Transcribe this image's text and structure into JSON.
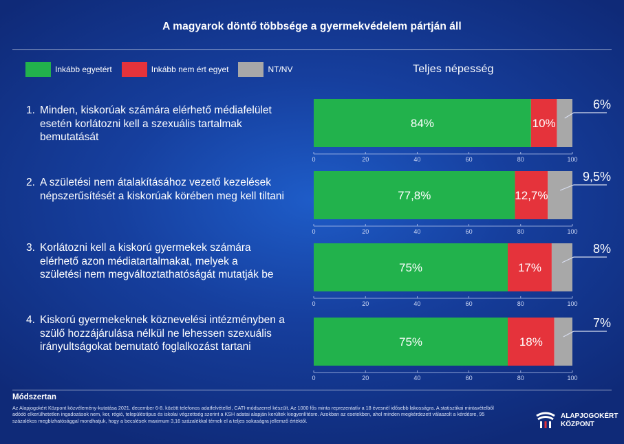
{
  "title": "A magyarok döntő többsége a gyermekvédelem pártján áll",
  "legend": [
    {
      "label": "Inkább egyetért",
      "color": "#22b24c"
    },
    {
      "label": "Inkább nem ért egyet",
      "color": "#e5333b"
    },
    {
      "label": "NT/NV",
      "color": "#a8a8a8"
    }
  ],
  "population_label": "Teljes népesség",
  "questions": [
    {
      "number": "1.",
      "text": "Minden, kiskorúak számára elérhető médiafelület esetén korlátozni kell a szexuális tartalmak bemutatását"
    },
    {
      "number": "2.",
      "text": "A születési nem átalakításához vezető kezelések népszerűsítését a kiskorúak körében meg kell tiltani"
    },
    {
      "number": "3.",
      "text": "Korlátozni kell a kiskorú gyermekek számára elérhető azon médiatartalmakat, melyek a születési nem megváltoztathatóságát mutatják be"
    },
    {
      "number": "4.",
      "text": "Kiskorú gyermekeknek köznevelési intézményben a szülő hozzájárulása nélkül ne lehessen szexuális irányultságokat bemutató foglalkozást tartani"
    }
  ],
  "chart_data": {
    "type": "bar",
    "orientation": "horizontal",
    "stacked": true,
    "xlim": [
      0,
      100
    ],
    "ticks": [
      "0",
      "20",
      "40",
      "60",
      "80",
      "100"
    ],
    "series_colors": [
      "#22b24c",
      "#e5333b",
      "#a8a8a8"
    ],
    "bars": [
      {
        "values": [
          84,
          10,
          6
        ],
        "labels": [
          "84%",
          "10%",
          "6%"
        ]
      },
      {
        "values": [
          77.8,
          12.7,
          9.5
        ],
        "labels": [
          "77,8%",
          "12,7%",
          "9,5%"
        ]
      },
      {
        "values": [
          75,
          17,
          8
        ],
        "labels": [
          "75%",
          "17%",
          "8%"
        ]
      },
      {
        "values": [
          75,
          18,
          7
        ],
        "labels": [
          "75%",
          "18%",
          "7%"
        ]
      }
    ]
  },
  "method": {
    "title": "Módszertan",
    "text": "Az Alapjogokért Központ közvélemény-kutatása 2021. december 6-8. között telefonos adatfelvétellel, CATI-módszerrel készült. Az 1000 fős minta reprezentatív a 18 évesnél idősebb lakosságra. A statisztikai mintavételből adódó elkerülhetetlen ingadozások nem, kor, régió, településtípus és iskolai végzettség szerint a KSH adatai alapján kerültek kiegyenlítésre. Azokban az esetekben, ahol minden megkérdezett válaszolt a kérdésre, 95 százalékos megbízhatósággal mondhatjuk, hogy a becslések maximum 3,16 százalékkal térnek el a teljes sokaságra jellemző értéktől."
  },
  "logo": {
    "line1": "ALAPJOGOKÉRT",
    "line2": "KÖZPONT"
  }
}
